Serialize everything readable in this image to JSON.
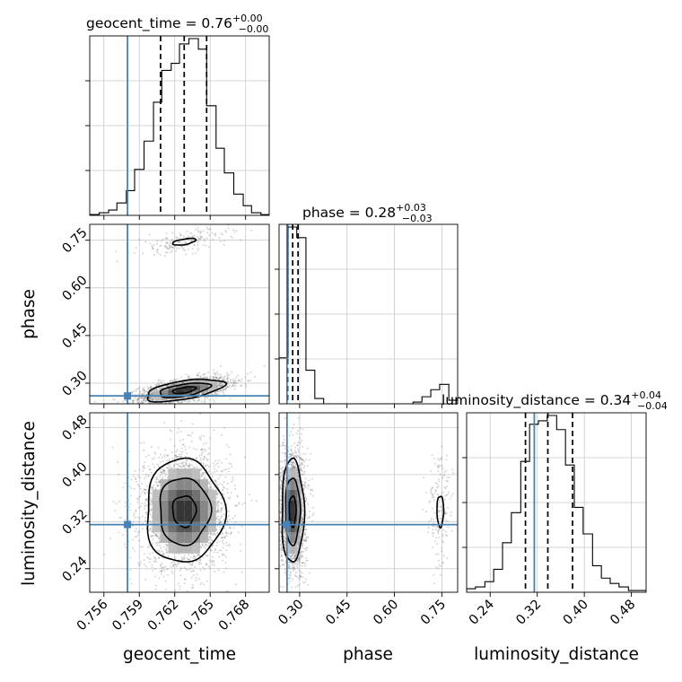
{
  "chart_data": {
    "type": "corner",
    "parameters": [
      "geocent_time",
      "phase",
      "luminosity_distance"
    ],
    "axis_labels": {
      "geocent_time": "geocent_time",
      "phase": "phase",
      "luminosity_distance": "luminosity_distance"
    },
    "ranges": {
      "geocent_time": [
        0.7548,
        0.77
      ],
      "phase": [
        0.235,
        0.8
      ],
      "luminosity_distance": [
        0.2,
        0.505
      ]
    },
    "ticks": {
      "geocent_time": [
        0.756,
        0.759,
        0.762,
        0.765,
        0.768
      ],
      "phase": [
        0.3,
        0.45,
        0.6,
        0.75
      ],
      "luminosity_distance": [
        0.24,
        0.32,
        0.4,
        0.48
      ]
    },
    "tick_labels": {
      "geocent_time": [
        "0.756",
        "0.759",
        "0.762",
        "0.765",
        "0.768"
      ],
      "phase": [
        "0.30",
        "0.45",
        "0.60",
        "0.75"
      ],
      "luminosity_distance": [
        "0.24",
        "0.32",
        "0.40",
        "0.48"
      ]
    },
    "titles": {
      "geocent_time": {
        "main": "geocent_time = 0.76",
        "sup": "+0.00",
        "sub": "−0.00"
      },
      "phase": {
        "main": "phase = 0.28",
        "sup": "+0.03",
        "sub": "−0.03"
      },
      "luminosity_distance": {
        "main": "luminosity_distance = 0.34",
        "sup": "+0.04",
        "sub": "−0.04"
      }
    },
    "truths": {
      "geocent_time": 0.758,
      "phase": 0.26,
      "luminosity_distance": 0.315
    },
    "quantiles": {
      "geocent_time": [
        0.7608,
        0.7628,
        0.7647
      ],
      "phase": [
        0.262,
        0.278,
        0.295
      ],
      "luminosity_distance": [
        0.3,
        0.338,
        0.38
      ]
    },
    "histograms": {
      "geocent_time": {
        "edges": [
          0.7548,
          0.7556,
          0.7564,
          0.7571,
          0.7579,
          0.7586,
          0.7594,
          0.7602,
          0.7609,
          0.7617,
          0.7624,
          0.7632,
          0.764,
          0.7647,
          0.7655,
          0.7662,
          0.767,
          0.7678,
          0.7685,
          0.7693,
          0.77
        ],
        "counts": [
          0.005,
          0.015,
          0.03,
          0.07,
          0.14,
          0.26,
          0.42,
          0.64,
          0.82,
          0.86,
          0.97,
          1.0,
          0.94,
          0.62,
          0.38,
          0.24,
          0.12,
          0.055,
          0.015,
          0.004
        ]
      },
      "phase": {
        "edges": [
          0.235,
          0.263,
          0.291,
          0.32,
          0.348,
          0.376,
          0.404,
          0.433,
          0.461,
          0.489,
          0.518,
          0.546,
          0.574,
          0.602,
          0.63,
          0.659,
          0.687,
          0.715,
          0.743,
          0.772,
          0.8
        ],
        "counts": [
          0.26,
          1.0,
          0.94,
          0.19,
          0.03,
          0.0,
          0.0,
          0.0,
          0.0,
          0.0,
          0.0,
          0.0,
          0.0,
          0.0,
          0.0,
          0.01,
          0.04,
          0.08,
          0.11,
          0.02
        ]
      },
      "luminosity_distance": {
        "edges": [
          0.2,
          0.215,
          0.231,
          0.246,
          0.261,
          0.276,
          0.292,
          0.307,
          0.322,
          0.337,
          0.353,
          0.368,
          0.383,
          0.398,
          0.414,
          0.429,
          0.444,
          0.459,
          0.475,
          0.49,
          0.505
        ],
        "counts": [
          0.02,
          0.03,
          0.06,
          0.13,
          0.28,
          0.45,
          0.74,
          0.95,
          0.97,
          1.0,
          0.92,
          0.72,
          0.48,
          0.33,
          0.15,
          0.08,
          0.05,
          0.03,
          0.01,
          0.01
        ]
      }
    },
    "modes": {
      "phase_vs_geocent_time": [
        {
          "center": [
            0.7628,
            0.278
          ],
          "sd": [
            0.0015,
            0.016
          ],
          "rho": 0.55,
          "weight": 0.93
        },
        {
          "center": [
            0.7628,
            0.745
          ],
          "sd": [
            0.0015,
            0.016
          ],
          "rho": 0.55,
          "weight": 0.07
        }
      ],
      "luminosity_distance_vs_geocent_time": [
        {
          "center": [
            0.7628,
            0.338
          ],
          "sd": [
            0.0015,
            0.04
          ],
          "rho": 0.0,
          "weight": 1.0
        }
      ],
      "luminosity_distance_vs_phase": [
        {
          "center": [
            0.278,
            0.338
          ],
          "sd": [
            0.016,
            0.04
          ],
          "rho": 0.0,
          "weight": 0.93
        },
        {
          "center": [
            0.745,
            0.338
          ],
          "sd": [
            0.016,
            0.04
          ],
          "rho": 0.0,
          "weight": 0.07
        }
      ]
    }
  }
}
